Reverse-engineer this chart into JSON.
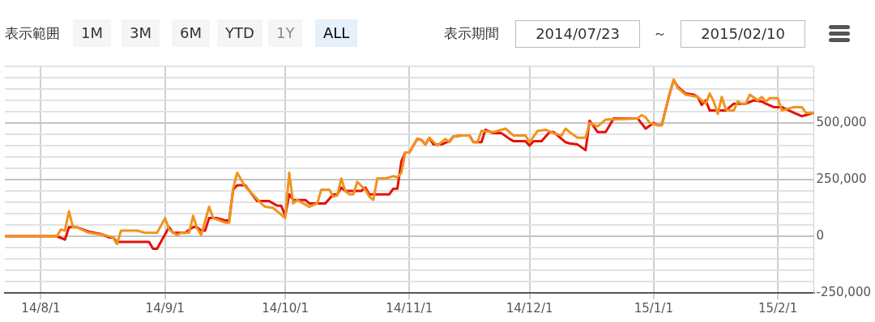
{
  "chart_data": {
    "type": "line",
    "annotations": [
      "表示範囲",
      "1M",
      "3M",
      "6M",
      "YTD",
      "1Y",
      "ALL",
      "表示期間",
      "2014/07/23",
      "～",
      "2015/02/10"
    ],
    "xlim": [
      "2014-07-23",
      "2015-02-10"
    ],
    "xticks": [
      {
        "value": "2014-08-01",
        "label": "14/8/1"
      },
      {
        "value": "2014-09-01",
        "label": "14/9/1"
      },
      {
        "value": "2014-10-01",
        "label": "14/10/1"
      },
      {
        "value": "2014-11-01",
        "label": "14/11/1"
      },
      {
        "value": "2014-12-01",
        "label": "14/12/1"
      },
      {
        "value": "2015-01-01",
        "label": "15/1/1"
      },
      {
        "value": "2015-02-01",
        "label": "15/2/1"
      }
    ],
    "ylim": [
      -250000,
      750000
    ],
    "yticks": [
      {
        "value": -250000,
        "label": "-250,000"
      },
      {
        "value": -200000,
        "label": null
      },
      {
        "value": -150000,
        "label": null
      },
      {
        "value": -100000,
        "label": null
      },
      {
        "value": -50000,
        "label": null
      },
      {
        "value": 0,
        "label": "0"
      },
      {
        "value": 50000,
        "label": null
      },
      {
        "value": 100000,
        "label": null
      },
      {
        "value": 150000,
        "label": null
      },
      {
        "value": 200000,
        "label": null
      },
      {
        "value": 250000,
        "label": "250,000"
      },
      {
        "value": 300000,
        "label": null
      },
      {
        "value": 350000,
        "label": null
      },
      {
        "value": 400000,
        "label": null
      },
      {
        "value": 450000,
        "label": null
      },
      {
        "value": 500000,
        "label": "500,000"
      },
      {
        "value": 550000,
        "label": null
      },
      {
        "value": 600000,
        "label": null
      },
      {
        "value": 650000,
        "label": null
      },
      {
        "value": 700000,
        "label": null
      },
      {
        "value": 750000,
        "label": null
      }
    ],
    "grid": true,
    "legend": false,
    "marker": "none",
    "line_style": "solid",
    "series": [
      {
        "color": "#f0931e",
        "x": [
          "2014-07-23",
          "2014-08-05",
          "2014-08-06",
          "2014-08-07",
          "2014-08-08",
          "2014-08-09",
          "2014-08-10",
          "2014-08-13",
          "2014-08-17",
          "2014-08-19",
          "2014-08-20",
          "2014-08-21",
          "2014-08-25",
          "2014-08-27",
          "2014-08-30",
          "2014-09-01",
          "2014-09-02",
          "2014-09-04",
          "2014-09-05",
          "2014-09-07",
          "2014-09-08",
          "2014-09-09",
          "2014-09-10",
          "2014-09-12",
          "2014-09-13",
          "2014-09-16",
          "2014-09-17",
          "2014-09-18",
          "2014-09-19",
          "2014-09-21",
          "2014-09-25",
          "2014-09-26",
          "2014-09-28",
          "2014-09-29",
          "2014-10-01",
          "2014-10-02",
          "2014-10-03",
          "2014-10-04",
          "2014-10-07",
          "2014-10-09",
          "2014-10-10",
          "2014-10-12",
          "2014-10-13",
          "2014-10-14",
          "2014-10-15",
          "2014-10-16",
          "2014-10-17",
          "2014-10-18",
          "2014-10-19",
          "2014-10-21",
          "2014-10-22",
          "2014-10-23",
          "2014-10-24",
          "2014-10-26",
          "2014-10-28",
          "2014-10-29",
          "2014-10-30",
          "2014-10-31",
          "2014-11-01",
          "2014-11-03",
          "2014-11-04",
          "2014-11-05",
          "2014-11-06",
          "2014-11-08",
          "2014-11-10",
          "2014-11-11",
          "2014-11-12",
          "2014-11-14",
          "2014-11-16",
          "2014-11-17",
          "2014-11-18",
          "2014-11-19",
          "2014-11-22",
          "2014-11-25",
          "2014-11-27",
          "2014-11-30",
          "2014-12-01",
          "2014-12-03",
          "2014-12-05",
          "2014-12-07",
          "2014-12-09",
          "2014-12-10",
          "2014-12-11",
          "2014-12-13",
          "2014-12-15",
          "2014-12-16",
          "2014-12-18",
          "2014-12-20",
          "2014-12-21",
          "2014-12-28",
          "2014-12-29",
          "2014-12-30",
          "2014-12-31",
          "2015-01-02",
          "2015-01-03",
          "2015-01-05",
          "2015-01-06",
          "2015-01-07",
          "2015-01-09",
          "2015-01-12",
          "2015-01-13",
          "2015-01-14",
          "2015-01-15",
          "2015-01-16",
          "2015-01-17",
          "2015-01-18",
          "2015-01-19",
          "2015-01-20",
          "2015-01-21",
          "2015-01-22",
          "2015-01-23",
          "2015-01-24",
          "2015-01-25",
          "2015-01-27",
          "2015-01-28",
          "2015-01-29",
          "2015-01-30",
          "2015-02-01",
          "2015-02-02",
          "2015-02-05",
          "2015-02-07",
          "2015-02-08",
          "2015-02-10"
        ],
        "values": [
          0,
          0,
          30000,
          25000,
          110000,
          40000,
          40000,
          15000,
          5000,
          -5000,
          -35000,
          25000,
          25000,
          15000,
          15000,
          80000,
          30000,
          5000,
          15000,
          15000,
          90000,
          35000,
          5000,
          130000,
          80000,
          60000,
          60000,
          210000,
          280000,
          220000,
          145000,
          130000,
          125000,
          110000,
          80000,
          280000,
          145000,
          160000,
          130000,
          145000,
          205000,
          205000,
          175000,
          180000,
          255000,
          200000,
          185000,
          185000,
          240000,
          205000,
          175000,
          160000,
          255000,
          255000,
          265000,
          260000,
          280000,
          370000,
          370000,
          430000,
          425000,
          405000,
          435000,
          400000,
          430000,
          415000,
          440000,
          445000,
          445000,
          415000,
          415000,
          465000,
          460000,
          475000,
          445000,
          445000,
          415000,
          465000,
          470000,
          455000,
          445000,
          475000,
          460000,
          435000,
          435000,
          500000,
          485000,
          515000,
          515000,
          520000,
          535000,
          525000,
          500000,
          490000,
          490000,
          630000,
          690000,
          655000,
          625000,
          615000,
          600000,
          585000,
          630000,
          595000,
          540000,
          615000,
          560000,
          555000,
          555000,
          595000,
          585000,
          585000,
          625000,
          600000,
          615000,
          595000,
          610000,
          610000,
          555000,
          570000,
          570000,
          545000,
          545000
        ]
      },
      {
        "color": "#e3120b",
        "x": [
          "2014-07-23",
          "2014-08-05",
          "2014-08-07",
          "2014-08-08",
          "2014-08-10",
          "2014-08-13",
          "2014-08-16",
          "2014-08-18",
          "2014-08-19",
          "2014-08-20",
          "2014-08-28",
          "2014-08-29",
          "2014-08-30",
          "2014-09-02",
          "2014-09-03",
          "2014-09-06",
          "2014-09-08",
          "2014-09-09",
          "2014-09-10",
          "2014-09-11",
          "2014-09-12",
          "2014-09-14",
          "2014-09-16",
          "2014-09-17",
          "2014-09-18",
          "2014-09-19",
          "2014-09-21",
          "2014-09-24",
          "2014-09-25",
          "2014-09-27",
          "2014-09-29",
          "2014-09-30",
          "2014-10-01",
          "2014-10-02",
          "2014-10-03",
          "2014-10-06",
          "2014-10-07",
          "2014-10-11",
          "2014-10-13",
          "2014-10-14",
          "2014-10-15",
          "2014-10-16",
          "2014-10-20",
          "2014-10-21",
          "2014-10-22",
          "2014-10-27",
          "2014-10-28",
          "2014-10-29",
          "2014-10-30",
          "2014-10-31",
          "2014-11-01",
          "2014-11-03",
          "2014-11-04",
          "2014-11-05",
          "2014-11-06",
          "2014-11-07",
          "2014-11-09",
          "2014-11-11",
          "2014-11-12",
          "2014-11-14",
          "2014-11-16",
          "2014-11-17",
          "2014-11-19",
          "2014-11-20",
          "2014-11-22",
          "2014-11-24",
          "2014-11-26",
          "2014-11-27",
          "2014-11-30",
          "2014-12-01",
          "2014-12-02",
          "2014-12-04",
          "2014-12-06",
          "2014-12-07",
          "2014-12-10",
          "2014-12-11",
          "2014-12-13",
          "2014-12-15",
          "2014-12-16",
          "2014-12-18",
          "2014-12-20",
          "2014-12-22",
          "2014-12-28",
          "2014-12-30",
          "2015-01-01",
          "2015-01-02",
          "2015-01-03",
          "2015-01-05",
          "2015-01-06",
          "2015-01-07",
          "2015-01-09",
          "2015-01-11",
          "2015-01-12",
          "2015-01-13",
          "2015-01-14",
          "2015-01-15",
          "2015-01-19",
          "2015-01-21",
          "2015-01-24",
          "2015-01-26",
          "2015-01-28",
          "2015-01-29",
          "2015-01-31",
          "2015-02-02",
          "2015-02-05",
          "2015-02-07",
          "2015-02-08",
          "2015-02-10"
        ],
        "values": [
          0,
          0,
          -15000,
          40000,
          40000,
          20000,
          10000,
          -5000,
          -5000,
          -25000,
          -25000,
          -55000,
          -55000,
          40000,
          15000,
          15000,
          40000,
          40000,
          25000,
          25000,
          80000,
          80000,
          70000,
          70000,
          205000,
          225000,
          225000,
          155000,
          155000,
          155000,
          135000,
          135000,
          90000,
          185000,
          160000,
          160000,
          145000,
          145000,
          185000,
          185000,
          215000,
          200000,
          200000,
          215000,
          185000,
          185000,
          210000,
          210000,
          330000,
          370000,
          370000,
          430000,
          425000,
          405000,
          435000,
          405000,
          405000,
          420000,
          440000,
          445000,
          445000,
          415000,
          415000,
          470000,
          455000,
          455000,
          430000,
          420000,
          420000,
          400000,
          420000,
          420000,
          460000,
          460000,
          415000,
          410000,
          405000,
          380000,
          510000,
          460000,
          460000,
          520000,
          520000,
          475000,
          500000,
          490000,
          490000,
          630000,
          690000,
          660000,
          630000,
          625000,
          615000,
          580000,
          600000,
          555000,
          555000,
          585000,
          585000,
          600000,
          595000,
          585000,
          570000,
          570000,
          545000,
          530000,
          535000,
          545000
        ]
      }
    ]
  }
}
